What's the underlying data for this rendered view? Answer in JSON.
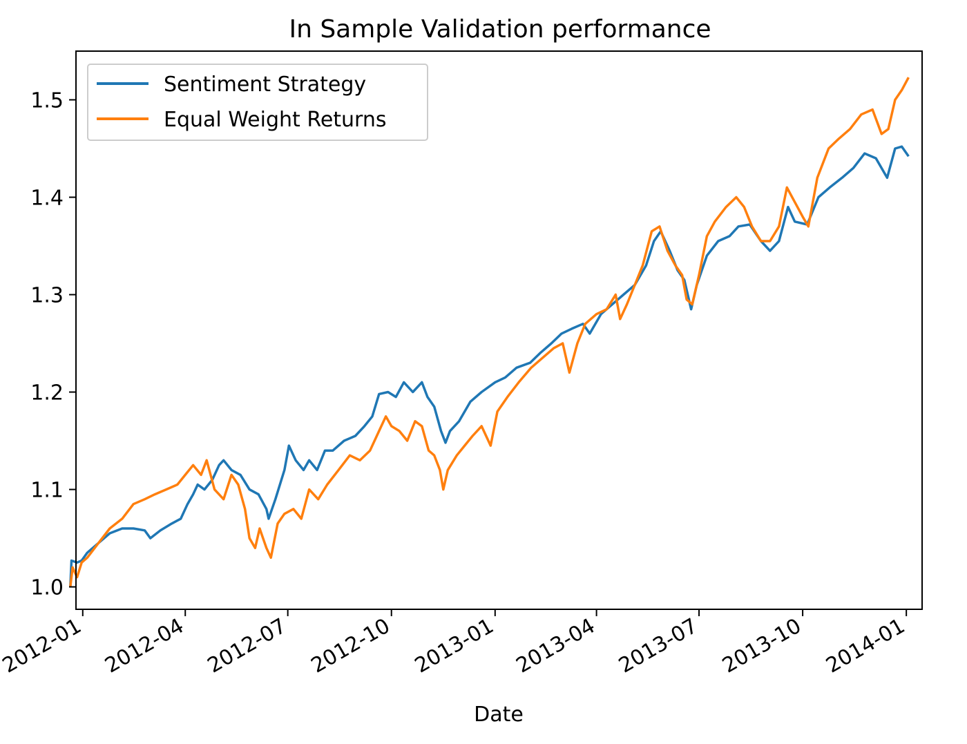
{
  "chart_data": {
    "type": "line",
    "title": "In Sample Validation performance",
    "xlabel": "Date",
    "ylabel": "",
    "x_range": [
      "2011-12-26",
      "2014-01-15"
    ],
    "ylim": [
      0.977,
      1.55
    ],
    "x_ticks": [
      "2012-01",
      "2012-04",
      "2012-07",
      "2012-10",
      "2013-01",
      "2013-04",
      "2013-07",
      "2013-10",
      "2014-01"
    ],
    "y_ticks": [
      "1.0",
      "1.1",
      "1.2",
      "1.3",
      "1.4",
      "1.5"
    ],
    "grid": false,
    "legend_position": "upper-left",
    "series": [
      {
        "name": "Sentiment Strategy",
        "color": "#1f77b4",
        "points": [
          [
            "2011-12-21",
            1.0
          ],
          [
            "2011-12-22",
            1.027
          ],
          [
            "2011-12-27",
            1.025
          ],
          [
            "2011-12-31",
            1.027
          ],
          [
            "2012-01-05",
            1.035
          ],
          [
            "2012-01-15",
            1.045
          ],
          [
            "2012-01-25",
            1.055
          ],
          [
            "2012-02-05",
            1.06
          ],
          [
            "2012-02-15",
            1.06
          ],
          [
            "2012-02-25",
            1.058
          ],
          [
            "2012-03-01",
            1.05
          ],
          [
            "2012-03-10",
            1.058
          ],
          [
            "2012-03-20",
            1.065
          ],
          [
            "2012-03-28",
            1.07
          ],
          [
            "2012-04-03",
            1.085
          ],
          [
            "2012-04-08",
            1.095
          ],
          [
            "2012-04-12",
            1.105
          ],
          [
            "2012-04-18",
            1.1
          ],
          [
            "2012-04-25",
            1.11
          ],
          [
            "2012-05-01",
            1.125
          ],
          [
            "2012-05-05",
            1.13
          ],
          [
            "2012-05-12",
            1.12
          ],
          [
            "2012-05-20",
            1.115
          ],
          [
            "2012-05-28",
            1.1
          ],
          [
            "2012-06-05",
            1.095
          ],
          [
            "2012-06-12",
            1.08
          ],
          [
            "2012-06-14",
            1.07
          ],
          [
            "2012-06-20",
            1.09
          ],
          [
            "2012-06-28",
            1.12
          ],
          [
            "2012-07-02",
            1.145
          ],
          [
            "2012-07-08",
            1.13
          ],
          [
            "2012-07-15",
            1.12
          ],
          [
            "2012-07-20",
            1.13
          ],
          [
            "2012-07-27",
            1.12
          ],
          [
            "2012-08-03",
            1.14
          ],
          [
            "2012-08-10",
            1.14
          ],
          [
            "2012-08-20",
            1.15
          ],
          [
            "2012-08-30",
            1.155
          ],
          [
            "2012-09-07",
            1.165
          ],
          [
            "2012-09-14",
            1.175
          ],
          [
            "2012-09-20",
            1.198
          ],
          [
            "2012-09-28",
            1.2
          ],
          [
            "2012-10-05",
            1.195
          ],
          [
            "2012-10-12",
            1.21
          ],
          [
            "2012-10-20",
            1.2
          ],
          [
            "2012-10-28",
            1.21
          ],
          [
            "2012-11-02",
            1.195
          ],
          [
            "2012-11-08",
            1.185
          ],
          [
            "2012-11-14",
            1.16
          ],
          [
            "2012-11-18",
            1.148
          ],
          [
            "2012-11-22",
            1.16
          ],
          [
            "2012-11-30",
            1.17
          ],
          [
            "2012-12-10",
            1.19
          ],
          [
            "2012-12-20",
            1.2
          ],
          [
            "2013-01-01",
            1.21
          ],
          [
            "2013-01-10",
            1.215
          ],
          [
            "2013-01-20",
            1.225
          ],
          [
            "2013-02-01",
            1.23
          ],
          [
            "2013-02-10",
            1.24
          ],
          [
            "2013-02-20",
            1.25
          ],
          [
            "2013-03-01",
            1.26
          ],
          [
            "2013-03-10",
            1.265
          ],
          [
            "2013-03-20",
            1.27
          ],
          [
            "2013-03-26",
            1.26
          ],
          [
            "2013-04-05",
            1.28
          ],
          [
            "2013-04-15",
            1.29
          ],
          [
            "2013-04-25",
            1.3
          ],
          [
            "2013-05-05",
            1.31
          ],
          [
            "2013-05-15",
            1.33
          ],
          [
            "2013-05-22",
            1.355
          ],
          [
            "2013-05-28",
            1.365
          ],
          [
            "2013-06-05",
            1.345
          ],
          [
            "2013-06-12",
            1.325
          ],
          [
            "2013-06-18",
            1.315
          ],
          [
            "2013-06-24",
            1.285
          ],
          [
            "2013-06-29",
            1.31
          ],
          [
            "2013-07-08",
            1.34
          ],
          [
            "2013-07-18",
            1.355
          ],
          [
            "2013-07-28",
            1.36
          ],
          [
            "2013-08-05",
            1.37
          ],
          [
            "2013-08-15",
            1.372
          ],
          [
            "2013-08-25",
            1.355
          ],
          [
            "2013-09-02",
            1.345
          ],
          [
            "2013-09-10",
            1.355
          ],
          [
            "2013-09-18",
            1.39
          ],
          [
            "2013-09-24",
            1.375
          ],
          [
            "2013-10-05",
            1.372
          ],
          [
            "2013-10-15",
            1.4
          ],
          [
            "2013-10-25",
            1.41
          ],
          [
            "2013-11-05",
            1.42
          ],
          [
            "2013-11-15",
            1.43
          ],
          [
            "2013-11-25",
            1.445
          ],
          [
            "2013-12-05",
            1.44
          ],
          [
            "2013-12-15",
            1.42
          ],
          [
            "2013-12-22",
            1.45
          ],
          [
            "2013-12-28",
            1.452
          ],
          [
            "2014-01-03",
            1.442
          ]
        ]
      },
      {
        "name": "Equal Weight Returns",
        "color": "#ff7f0e",
        "points": [
          [
            "2011-12-21",
            1.0
          ],
          [
            "2011-12-23",
            1.02
          ],
          [
            "2011-12-27",
            1.01
          ],
          [
            "2011-12-31",
            1.025
          ],
          [
            "2012-01-05",
            1.03
          ],
          [
            "2012-01-15",
            1.045
          ],
          [
            "2012-01-25",
            1.06
          ],
          [
            "2012-02-05",
            1.07
          ],
          [
            "2012-02-15",
            1.085
          ],
          [
            "2012-02-25",
            1.09
          ],
          [
            "2012-03-05",
            1.095
          ],
          [
            "2012-03-15",
            1.1
          ],
          [
            "2012-03-25",
            1.105
          ],
          [
            "2012-04-01",
            1.115
          ],
          [
            "2012-04-08",
            1.125
          ],
          [
            "2012-04-15",
            1.115
          ],
          [
            "2012-04-20",
            1.13
          ],
          [
            "2012-04-27",
            1.1
          ],
          [
            "2012-05-05",
            1.09
          ],
          [
            "2012-05-12",
            1.115
          ],
          [
            "2012-05-18",
            1.105
          ],
          [
            "2012-05-24",
            1.08
          ],
          [
            "2012-05-28",
            1.05
          ],
          [
            "2012-06-02",
            1.04
          ],
          [
            "2012-06-06",
            1.06
          ],
          [
            "2012-06-12",
            1.04
          ],
          [
            "2012-06-16",
            1.03
          ],
          [
            "2012-06-22",
            1.065
          ],
          [
            "2012-06-28",
            1.075
          ],
          [
            "2012-07-06",
            1.08
          ],
          [
            "2012-07-13",
            1.07
          ],
          [
            "2012-07-20",
            1.1
          ],
          [
            "2012-07-28",
            1.09
          ],
          [
            "2012-08-05",
            1.105
          ],
          [
            "2012-08-15",
            1.12
          ],
          [
            "2012-08-25",
            1.135
          ],
          [
            "2012-09-03",
            1.13
          ],
          [
            "2012-09-12",
            1.14
          ],
          [
            "2012-09-20",
            1.16
          ],
          [
            "2012-09-26",
            1.175
          ],
          [
            "2012-10-01",
            1.165
          ],
          [
            "2012-10-08",
            1.16
          ],
          [
            "2012-10-15",
            1.15
          ],
          [
            "2012-10-22",
            1.17
          ],
          [
            "2012-10-28",
            1.165
          ],
          [
            "2012-11-03",
            1.14
          ],
          [
            "2012-11-08",
            1.135
          ],
          [
            "2012-11-13",
            1.12
          ],
          [
            "2012-11-16",
            1.1
          ],
          [
            "2012-11-20",
            1.12
          ],
          [
            "2012-11-28",
            1.135
          ],
          [
            "2012-12-05",
            1.145
          ],
          [
            "2012-12-12",
            1.155
          ],
          [
            "2012-12-20",
            1.165
          ],
          [
            "2012-12-28",
            1.145
          ],
          [
            "2013-01-03",
            1.18
          ],
          [
            "2013-01-12",
            1.195
          ],
          [
            "2013-01-22",
            1.21
          ],
          [
            "2013-02-02",
            1.225
          ],
          [
            "2013-02-12",
            1.235
          ],
          [
            "2013-02-22",
            1.245
          ],
          [
            "2013-03-02",
            1.25
          ],
          [
            "2013-03-08",
            1.22
          ],
          [
            "2013-03-15",
            1.25
          ],
          [
            "2013-03-22",
            1.27
          ],
          [
            "2013-04-01",
            1.28
          ],
          [
            "2013-04-10",
            1.285
          ],
          [
            "2013-04-18",
            1.3
          ],
          [
            "2013-04-22",
            1.275
          ],
          [
            "2013-04-28",
            1.29
          ],
          [
            "2013-05-05",
            1.31
          ],
          [
            "2013-05-12",
            1.33
          ],
          [
            "2013-05-20",
            1.365
          ],
          [
            "2013-05-27",
            1.37
          ],
          [
            "2013-06-03",
            1.345
          ],
          [
            "2013-06-10",
            1.33
          ],
          [
            "2013-06-16",
            1.32
          ],
          [
            "2013-06-20",
            1.295
          ],
          [
            "2013-06-25",
            1.29
          ],
          [
            "2013-07-01",
            1.32
          ],
          [
            "2013-07-08",
            1.36
          ],
          [
            "2013-07-15",
            1.375
          ],
          [
            "2013-07-25",
            1.39
          ],
          [
            "2013-08-03",
            1.4
          ],
          [
            "2013-08-10",
            1.39
          ],
          [
            "2013-08-17",
            1.37
          ],
          [
            "2013-08-25",
            1.355
          ],
          [
            "2013-09-02",
            1.355
          ],
          [
            "2013-09-10",
            1.37
          ],
          [
            "2013-09-17",
            1.41
          ],
          [
            "2013-09-24",
            1.395
          ],
          [
            "2013-10-01",
            1.38
          ],
          [
            "2013-10-06",
            1.37
          ],
          [
            "2013-10-14",
            1.42
          ],
          [
            "2013-10-24",
            1.45
          ],
          [
            "2013-11-02",
            1.46
          ],
          [
            "2013-11-12",
            1.47
          ],
          [
            "2013-11-22",
            1.485
          ],
          [
            "2013-12-02",
            1.49
          ],
          [
            "2013-12-10",
            1.465
          ],
          [
            "2013-12-16",
            1.47
          ],
          [
            "2013-12-22",
            1.5
          ],
          [
            "2013-12-28",
            1.51
          ],
          [
            "2014-01-03",
            1.523
          ]
        ]
      }
    ]
  }
}
